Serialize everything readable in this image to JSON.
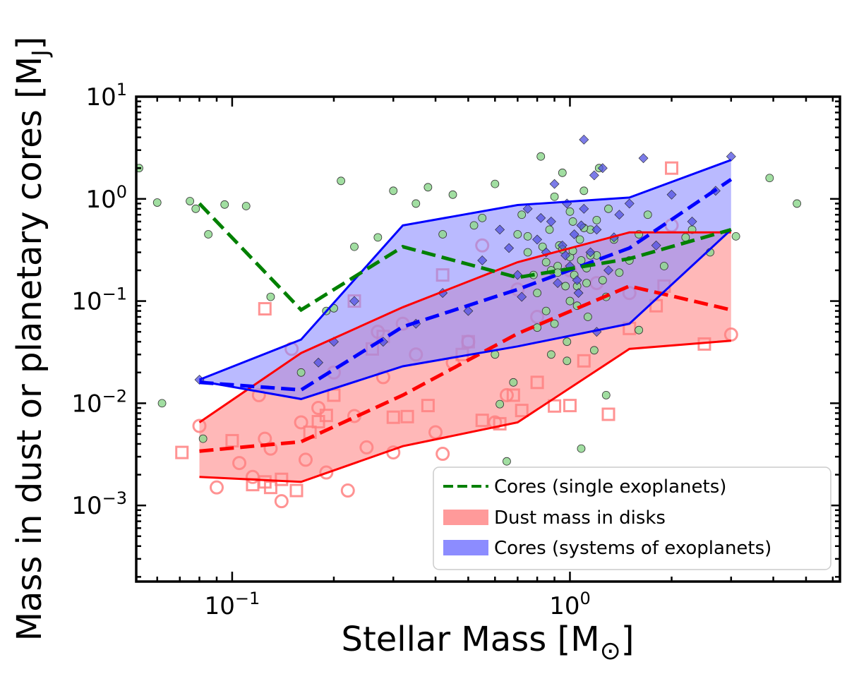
{
  "chart_data": {
    "type": "scatter",
    "xscale": "log",
    "yscale": "log",
    "xlim": [
      0.052,
      6.3
    ],
    "ylim": [
      0.00018,
      10
    ],
    "xlabel": "Stellar Mass [M",
    "xlabel_sym": "⊙",
    "xlabel_end": "]",
    "ylabel": "Mass in dust or planetary cores [M",
    "ylabel_sub": "J",
    "ylabel_end": "]",
    "xticks": [
      {
        "value": 0.1,
        "base": "10",
        "exp": "−1"
      },
      {
        "value": 1,
        "base": "10",
        "exp": "0"
      }
    ],
    "yticks": [
      {
        "value": 0.001,
        "base": "10",
        "exp": "−3"
      },
      {
        "value": 0.01,
        "base": "10",
        "exp": "−2"
      },
      {
        "value": 0.1,
        "base": "10",
        "exp": "−1"
      },
      {
        "value": 1,
        "base": "10",
        "exp": "0"
      },
      {
        "value": 10,
        "base": "10",
        "exp": "1"
      }
    ],
    "colors": {
      "green": "#008000",
      "green_point": "#90d890",
      "red": "#ff0000",
      "red_fill": "#ff9a9a",
      "red_marker": "#ff8080",
      "blue": "#0000ff",
      "blue_fill": "#8c8cff",
      "blue_point": "#5050e0"
    },
    "legend": {
      "position": "lower-right",
      "entries": [
        {
          "label": "Cores (single exoplanets)",
          "style": "dashed-line",
          "color": "#008000"
        },
        {
          "label": "Dust mass in disks",
          "style": "patch",
          "color": "#ff9a9a"
        },
        {
          "label": "Cores (systems of exoplanets)",
          "style": "patch",
          "color": "#8c8cff"
        }
      ]
    },
    "bands": [
      {
        "name": "Dust mass in disks",
        "color": "#ff0000",
        "fill": "#ff9a9a",
        "x": [
          0.08,
          0.16,
          0.32,
          0.7,
          1.5,
          3.0
        ],
        "upper": [
          0.0065,
          0.031,
          0.087,
          0.24,
          0.47,
          0.47
        ],
        "median": [
          0.0034,
          0.0042,
          0.012,
          0.048,
          0.14,
          0.082
        ],
        "lower": [
          0.0019,
          0.0017,
          0.0038,
          0.0065,
          0.034,
          0.041
        ]
      },
      {
        "name": "Cores (systems of exoplanets)",
        "color": "#0000ff",
        "fill": "#8c8cff",
        "x": [
          0.08,
          0.16,
          0.32,
          0.7,
          1.5,
          3.0
        ],
        "upper": [
          0.017,
          0.042,
          0.55,
          0.87,
          1.03,
          2.4
        ],
        "median": [
          0.016,
          0.0135,
          0.056,
          0.13,
          0.33,
          1.55
        ],
        "lower": [
          0.0165,
          0.011,
          0.023,
          0.036,
          0.06,
          0.5
        ]
      }
    ],
    "series": [
      {
        "name": "Cores (single exoplanets) median",
        "type": "line",
        "style": "dashed",
        "color": "#008000",
        "x": [
          0.08,
          0.16,
          0.32,
          0.7,
          1.5,
          3.0
        ],
        "y": [
          0.9,
          0.082,
          0.34,
          0.17,
          0.26,
          0.5
        ]
      },
      {
        "name": "Single exoplanets",
        "type": "scatter",
        "marker": "circle",
        "x": [
          0.053,
          0.06,
          0.062,
          0.075,
          0.078,
          0.082,
          0.085,
          0.095,
          0.11,
          0.13,
          0.16,
          0.19,
          0.2,
          0.21,
          0.23,
          0.27,
          0.3,
          0.35,
          0.38,
          0.42,
          0.45,
          0.52,
          0.55,
          0.6,
          0.65,
          0.7,
          0.72,
          0.75,
          0.78,
          0.8,
          0.82,
          0.85,
          0.87,
          0.88,
          0.9,
          0.92,
          0.93,
          0.95,
          0.97,
          0.98,
          1.0,
          1.0,
          1.02,
          1.03,
          1.05,
          1.07,
          1.08,
          1.1,
          1.12,
          1.13,
          1.15,
          1.18,
          1.2,
          1.22,
          1.25,
          1.28,
          1.3,
          1.35,
          1.4,
          1.5,
          1.6,
          1.7,
          1.9,
          2.2,
          2.6,
          3.1,
          3.9,
          4.7,
          0.88,
          0.95,
          1.05,
          1.15,
          0.9,
          1.0,
          1.1,
          1.2,
          0.85,
          0.92,
          1.02,
          1.12,
          0.68,
          0.6,
          1.6,
          2.3,
          0.62,
          0.8,
          0.98,
          1.08,
          1.28,
          0.75,
          0.83
        ],
        "y": [
          2.0,
          0.92,
          0.01,
          0.95,
          0.8,
          0.0045,
          0.45,
          0.88,
          0.85,
          0.11,
          0.02,
          0.08,
          0.085,
          1.5,
          0.34,
          0.42,
          1.2,
          0.9,
          1.3,
          0.45,
          1.1,
          0.55,
          0.65,
          1.4,
          0.0027,
          0.45,
          0.7,
          0.3,
          0.18,
          0.12,
          2.6,
          0.08,
          0.5,
          0.03,
          0.06,
          0.22,
          0.35,
          1.8,
          0.14,
          0.04,
          0.27,
          0.1,
          0.6,
          0.18,
          0.09,
          0.4,
          0.25,
          1.2,
          0.15,
          0.07,
          0.5,
          0.033,
          0.28,
          2.0,
          0.16,
          0.11,
          0.8,
          0.4,
          0.19,
          0.25,
          0.45,
          0.7,
          0.22,
          0.42,
          0.3,
          0.43,
          1.6,
          0.9,
          0.2,
          0.32,
          0.14,
          0.28,
          1.05,
          0.75,
          0.52,
          0.62,
          0.24,
          0.19,
          0.31,
          0.21,
          0.016,
          0.03,
          0.052,
          0.5,
          0.0098,
          0.055,
          0.026,
          0.0036,
          0.012,
          0.43,
          0.34
        ]
      },
      {
        "name": "Systems of exoplanets",
        "type": "scatter",
        "marker": "diamond",
        "x": [
          0.08,
          0.18,
          0.2,
          0.23,
          0.28,
          0.35,
          0.42,
          0.5,
          0.55,
          0.62,
          0.7,
          0.75,
          0.8,
          0.85,
          0.88,
          0.92,
          0.95,
          0.98,
          1.0,
          1.03,
          1.06,
          1.1,
          1.15,
          1.2,
          1.25,
          1.3,
          1.4,
          1.5,
          1.65,
          1.8,
          2.0,
          2.3,
          2.7,
          3.0,
          1.1,
          0.9,
          1.2,
          0.97,
          1.05,
          1.35,
          0.82,
          0.72,
          0.66,
          1.08,
          1.18
        ],
        "y": [
          0.017,
          0.025,
          0.04,
          0.1,
          0.04,
          0.06,
          0.12,
          0.08,
          0.25,
          0.5,
          0.18,
          0.8,
          0.4,
          0.3,
          0.6,
          0.15,
          0.35,
          0.9,
          0.22,
          0.45,
          0.12,
          3.8,
          0.3,
          0.5,
          2.0,
          0.2,
          0.7,
          0.9,
          2.5,
          0.35,
          1.1,
          0.6,
          1.2,
          2.6,
          0.8,
          1.4,
          0.05,
          0.28,
          0.16,
          0.42,
          0.65,
          0.11,
          0.33,
          0.55,
          1.7
        ]
      },
      {
        "name": "Disk dust (circles)",
        "type": "scatter",
        "marker": "open-circle",
        "x": [
          0.08,
          0.09,
          0.105,
          0.115,
          0.125,
          0.14,
          0.15,
          0.165,
          0.18,
          0.2,
          0.22,
          0.25,
          0.28,
          0.3,
          0.35,
          0.4,
          0.45,
          0.5,
          0.6,
          0.7,
          0.8,
          1.0,
          1.2,
          1.5,
          2.0,
          3.0,
          0.12,
          0.16,
          0.23,
          0.32,
          0.13,
          0.19,
          0.27,
          0.42,
          0.55,
          0.65
        ],
        "y": [
          0.006,
          0.0015,
          0.0026,
          0.0019,
          0.0045,
          0.0011,
          0.034,
          0.0028,
          0.009,
          0.02,
          0.0014,
          0.0037,
          0.018,
          0.0033,
          0.03,
          0.0052,
          0.025,
          0.04,
          0.0065,
          0.13,
          0.07,
          0.2,
          0.15,
          0.12,
          0.55,
          0.047,
          0.012,
          0.0065,
          0.0075,
          0.06,
          0.0036,
          0.0021,
          0.05,
          0.0032,
          0.35,
          0.012
        ]
      },
      {
        "name": "Disk dust (squares)",
        "type": "scatter",
        "marker": "open-square",
        "x": [
          0.071,
          0.1,
          0.115,
          0.125,
          0.13,
          0.14,
          0.155,
          0.17,
          0.18,
          0.2,
          0.23,
          0.26,
          0.3,
          0.33,
          0.38,
          0.42,
          0.48,
          0.55,
          0.62,
          0.72,
          0.8,
          0.9,
          1.0,
          1.1,
          1.3,
          1.5,
          1.8,
          2.0,
          2.5,
          0.125,
          0.19,
          0.28,
          0.5,
          0.68,
          1.9
        ],
        "y": [
          0.0033,
          0.0043,
          0.0016,
          0.0017,
          0.0015,
          0.0018,
          0.0014,
          0.0052,
          0.0066,
          0.012,
          0.1,
          0.034,
          0.0073,
          0.0074,
          0.0095,
          0.18,
          0.03,
          0.0068,
          0.0063,
          0.0085,
          0.016,
          0.0094,
          0.0095,
          0.026,
          0.0078,
          0.054,
          0.09,
          2.0,
          0.038,
          0.084,
          0.0076,
          0.045,
          0.04,
          0.012,
          0.14
        ]
      }
    ]
  }
}
